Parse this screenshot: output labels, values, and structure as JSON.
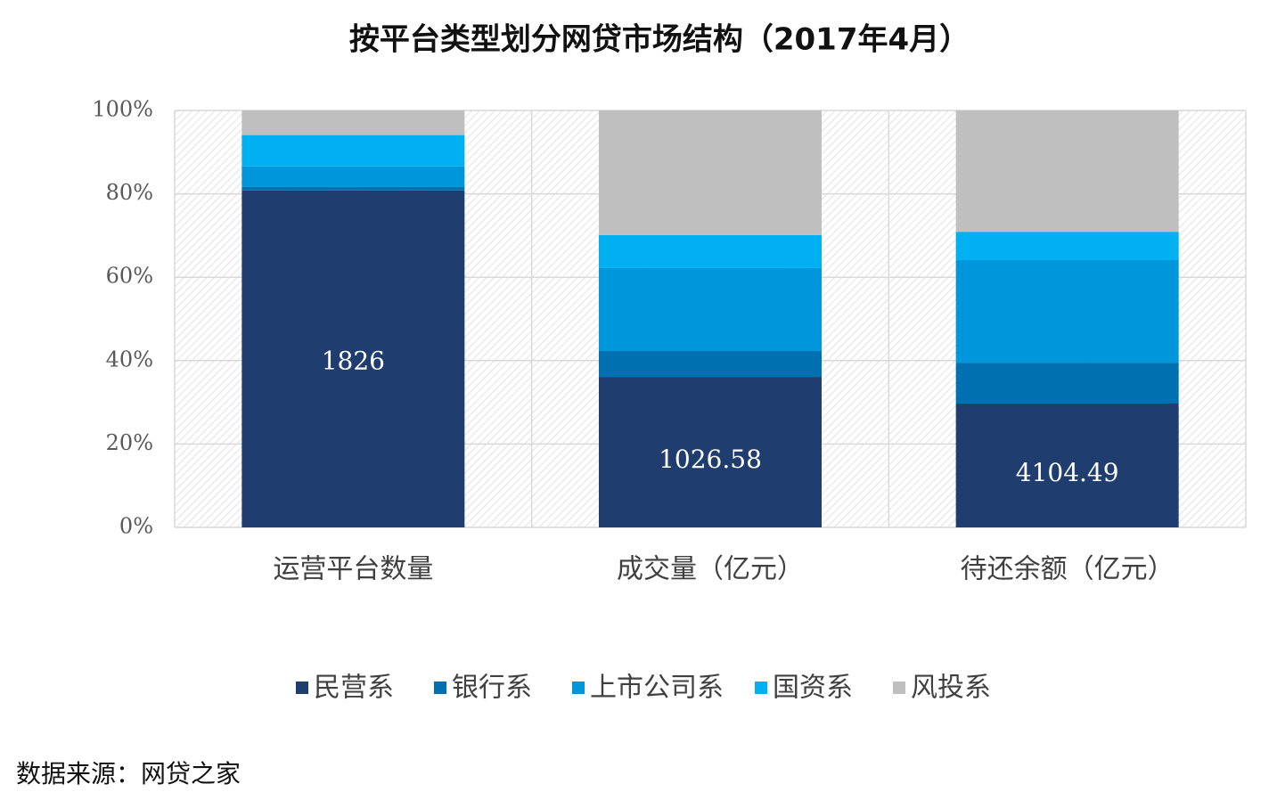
{
  "chart_data": {
    "type": "stacked_bar",
    "title": "按平台类型划分网贷市场结构（2017年4月）",
    "categories": [
      "运营平台数量",
      "成交量（亿元）",
      "待还余额（亿元）"
    ],
    "series": [
      {
        "name": "民营系",
        "color": "#1f3d6e",
        "values": [
          80.8,
          36.1,
          29.7
        ]
      },
      {
        "name": "银行系",
        "color": "#0070b0",
        "values": [
          0.9,
          6.2,
          9.8
        ]
      },
      {
        "name": "上市公司系",
        "color": "#0096dc",
        "values": [
          4.9,
          19.9,
          24.6
        ]
      },
      {
        "name": "国资系",
        "color": "#00b0f0",
        "values": [
          7.5,
          7.9,
          6.8
        ]
      },
      {
        "name": "风投系",
        "color": "#bfbfbf",
        "values": [
          5.9,
          29.9,
          29.1
        ]
      }
    ],
    "annotations": [
      "1826",
      "1026.58",
      "4104.49"
    ],
    "ylim": [
      0,
      100
    ],
    "yticks": [
      {
        "value": 0,
        "label": "0%"
      },
      {
        "value": 20,
        "label": "20%"
      },
      {
        "value": 40,
        "label": "40%"
      },
      {
        "value": 60,
        "label": "60%"
      },
      {
        "value": 80,
        "label": "80%"
      },
      {
        "value": 100,
        "label": "100%"
      }
    ],
    "grid": true,
    "legend": "bottom",
    "source": "数据来源：网贷之家"
  }
}
